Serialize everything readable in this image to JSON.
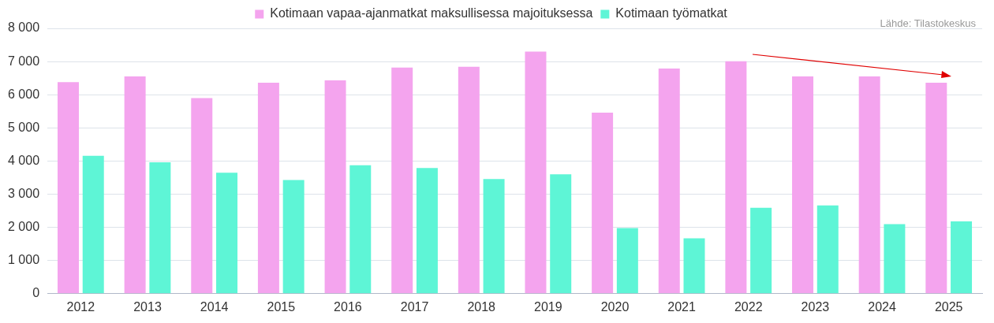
{
  "chart_data": {
    "type": "bar",
    "categories": [
      "2012",
      "2013",
      "2014",
      "2015",
      "2016",
      "2017",
      "2018",
      "2019",
      "2020",
      "2021",
      "2022",
      "2023",
      "2024",
      "2025"
    ],
    "series": [
      {
        "name": "Kotimaan vapaa-ajanmatkat maksullisessa majoituksessa",
        "color": "#f4a4ee",
        "values": [
          6380,
          6550,
          5900,
          6360,
          6430,
          6820,
          6840,
          7300,
          5460,
          6790,
          7010,
          6550,
          6550,
          6360
        ]
      },
      {
        "name": "Kotimaan työmatkat",
        "color": "#5ef5d6",
        "values": [
          4160,
          3960,
          3650,
          3430,
          3870,
          3790,
          3460,
          3600,
          1980,
          1670,
          2590,
          2660,
          2100,
          2180
        ]
      }
    ],
    "ylim": [
      0,
      8000
    ],
    "yticks": [
      0,
      {
        "value": 1000,
        "label": "1 000"
      },
      {
        "value": 2000,
        "label": "2 000"
      },
      {
        "value": 3000,
        "label": "3 000"
      },
      {
        "value": 4000,
        "label": "4 000"
      },
      {
        "value": 5000,
        "label": "5 000"
      },
      {
        "value": 6000,
        "label": "6 000"
      },
      {
        "value": 7000,
        "label": "7 000"
      },
      {
        "value": 8000,
        "label": "8 000"
      }
    ],
    "grid": "y",
    "legend": "top",
    "annotations": [
      "Lähde: Tilastokeskus"
    ]
  }
}
